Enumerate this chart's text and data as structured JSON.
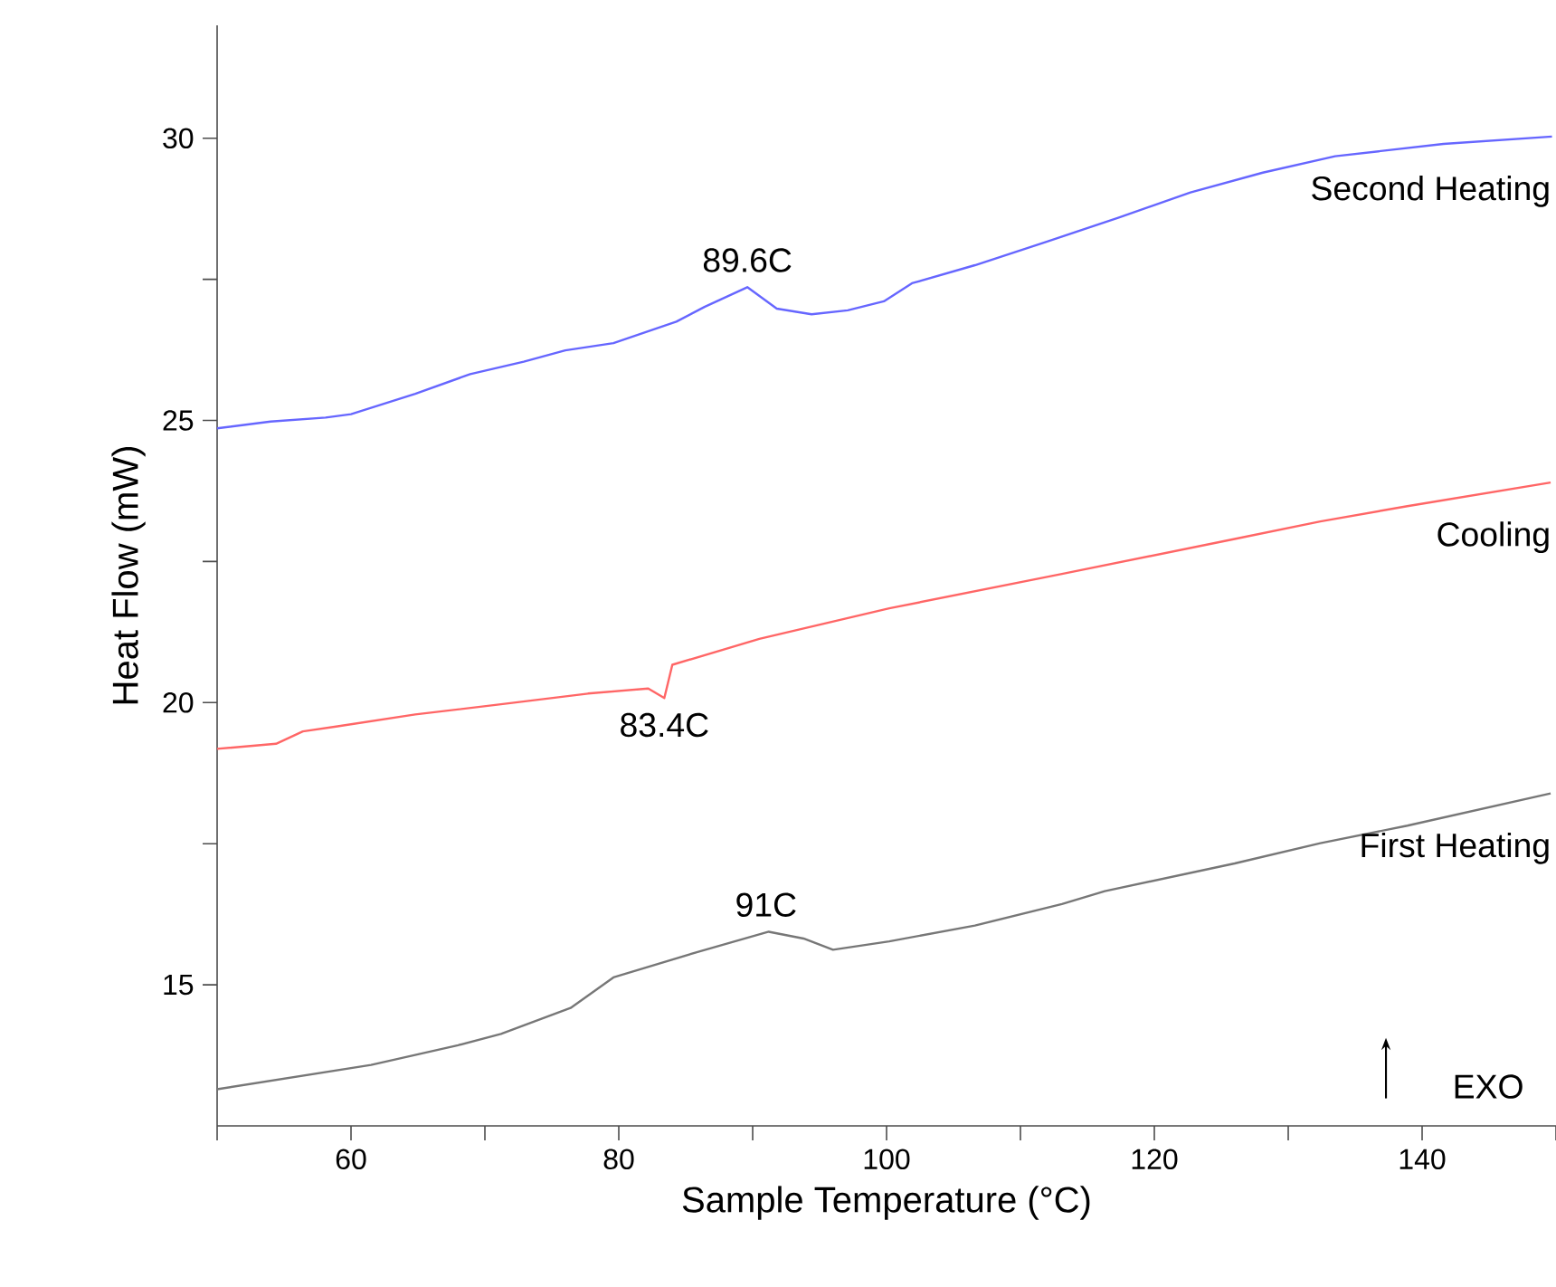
{
  "chart_data": {
    "type": "line",
    "xlabel": "Sample Temperature (°C)",
    "ylabel": "Heat Flow (mW)",
    "xlim": [
      50,
      150
    ],
    "ylim": [
      12.5,
      32
    ],
    "xticks": [
      {
        "value": 50,
        "label": null
      },
      60,
      {
        "value": 70,
        "label": null
      },
      80,
      {
        "value": 90,
        "label": null
      },
      100,
      {
        "value": 110,
        "label": null
      },
      120,
      {
        "value": 130,
        "label": null
      },
      140,
      {
        "value": 150,
        "label": null
      }
    ],
    "yticks": [
      15,
      {
        "value": 17.5,
        "label": null
      },
      20,
      {
        "value": 22.5,
        "label": null
      },
      25,
      {
        "value": 27.5,
        "label": null
      },
      30
    ],
    "grid": false,
    "legend": false,
    "marker": "none",
    "line_style": "solid",
    "series": [
      {
        "name": "Second Heating",
        "color": "#6666ff",
        "x": [
          50,
          54.0,
          58.1,
          60,
          64.8,
          68.9,
          72.9,
          76.0,
          79.6,
          84.3,
          86.4,
          89.6,
          91.8,
          94.4,
          97.1,
          99.8,
          101.9,
          106.6,
          112.0,
          117.3,
          122.7,
          128.1,
          133.5,
          141.6,
          149.7
        ],
        "values": [
          24.86,
          24.98,
          25.05,
          25.11,
          25.47,
          25.82,
          26.04,
          26.24,
          26.37,
          26.75,
          27.01,
          27.36,
          26.98,
          26.88,
          26.95,
          27.11,
          27.43,
          27.75,
          28.17,
          28.59,
          29.04,
          29.39,
          29.68,
          29.9,
          30.03
        ]
      },
      {
        "name": "Cooling",
        "color": "#ff6666",
        "x": [
          50,
          54.4,
          56.4,
          59.0,
          64.8,
          71.2,
          77.7,
          82.2,
          83.4,
          84.0,
          90.5,
          100.2,
          113.1,
          126.0,
          132.4,
          138.9,
          149.6
        ],
        "values": [
          19.18,
          19.27,
          19.49,
          19.58,
          19.79,
          19.97,
          20.16,
          20.25,
          20.08,
          20.67,
          21.13,
          21.67,
          22.28,
          22.9,
          23.21,
          23.48,
          23.9
        ]
      },
      {
        "name": "First Heating",
        "color": "#777777",
        "x": [
          50,
          61.5,
          68.0,
          71.2,
          76.4,
          79.6,
          86.0,
          91.2,
          93.8,
          96.0,
          100.2,
          106.6,
          113.1,
          116.3,
          126.0,
          132.4,
          138.9,
          149.6
        ],
        "values": [
          13.15,
          13.58,
          13.93,
          14.13,
          14.59,
          15.13,
          15.59,
          15.94,
          15.82,
          15.62,
          15.77,
          16.05,
          16.43,
          16.66,
          17.15,
          17.51,
          17.82,
          18.39
        ]
      }
    ],
    "annotations": [
      {
        "text": "89.6C",
        "x": 89.6,
        "y": 27.36
      },
      {
        "text": "83.4C",
        "x": 83.4,
        "y": 20.08
      },
      {
        "text": "91C",
        "x": 91,
        "y": 15.94
      },
      "EXO"
    ]
  }
}
